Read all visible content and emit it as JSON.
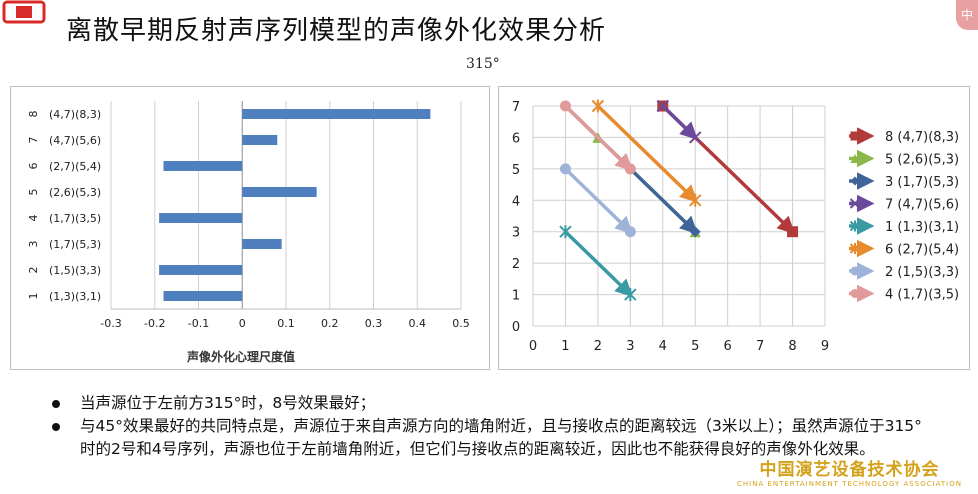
{
  "slide": {
    "title": "离散早期反射声序列模型的声像外化效果分析",
    "subtitle": "315°",
    "corner_badge": "中"
  },
  "chart_data": [
    {
      "type": "bar",
      "orientation": "horizontal",
      "categories": [
        "(1,3)(3,1)",
        "(1,5)(3,3)",
        "(1,7)(5,3)",
        "(1,7)(3,5)",
        "(2,6)(5,3)",
        "(2,7)(5,4)",
        "(4,7)(5,6)",
        "(4,7)(8,3)"
      ],
      "category_index_labels": [
        "1",
        "2",
        "3",
        "4",
        "5",
        "6",
        "7",
        "8"
      ],
      "values": [
        -0.18,
        -0.19,
        0.09,
        -0.19,
        0.17,
        -0.18,
        0.08,
        0.43
      ],
      "xlabel": "声像外化心理尺度值",
      "xlim": [
        -0.3,
        0.5
      ],
      "xticks": [
        "-0.3",
        "-0.2",
        "-0.1",
        "0",
        "0.1",
        "0.2",
        "0.3",
        "0.4",
        "0.5"
      ],
      "bar_color": "#4f7fbf",
      "grid": "vertical"
    },
    {
      "type": "line",
      "xlim": [
        0,
        9
      ],
      "ylim": [
        0,
        7
      ],
      "xticks": [
        "0",
        "1",
        "2",
        "3",
        "4",
        "5",
        "6",
        "7",
        "8",
        "9"
      ],
      "yticks": [
        "0",
        "1",
        "2",
        "3",
        "4",
        "5",
        "6",
        "7"
      ],
      "grid": true,
      "legend_position": "right",
      "series": [
        {
          "name": "8 (4,7)(8,3)",
          "color": "#b33a3a",
          "marker": "square",
          "points": [
            [
              4,
              7
            ],
            [
              8,
              3
            ]
          ]
        },
        {
          "name": "5 (2,6)(5,3)",
          "color": "#8cb84a",
          "marker": "triangle",
          "points": [
            [
              2,
              6
            ],
            [
              5,
              3
            ]
          ]
        },
        {
          "name": "3 (1,7)(5,3)",
          "color": "#3f6499",
          "marker": "diamond",
          "points": [
            [
              1,
              7
            ],
            [
              5,
              3
            ]
          ]
        },
        {
          "name": "7 (4,7)(5,6)",
          "color": "#6a4a9b",
          "marker": "x",
          "points": [
            [
              4,
              7
            ],
            [
              5,
              6
            ]
          ]
        },
        {
          "name": "1 (1,3)(3,1)",
          "color": "#3a9aa4",
          "marker": "star",
          "points": [
            [
              1,
              3
            ],
            [
              3,
              1
            ]
          ]
        },
        {
          "name": "6 (2,7)(5,4)",
          "color": "#e88a2e",
          "marker": "star",
          "points": [
            [
              2,
              7
            ],
            [
              5,
              4
            ]
          ]
        },
        {
          "name": "2 (1,5)(3,3)",
          "color": "#9fb3d8",
          "marker": "circle",
          "points": [
            [
              1,
              5
            ],
            [
              3,
              3
            ]
          ]
        },
        {
          "name": "4 (1,7)(3,5)",
          "color": "#e19a9a",
          "marker": "circle",
          "points": [
            [
              1,
              7
            ],
            [
              3,
              5
            ]
          ]
        }
      ]
    }
  ],
  "bullets": [
    "当声源位于左前方315°时，8号效果最好；",
    "与45°效果最好的共同特点是，声源位于来自声源方向的墙角附近，且与接收点的距离较远（3米以上）；虽然声源位于315°时的2号和4号序列，声源也位于左前墙角附近，但它们与接收点的距离较近，因此也不能获得良好的声像外化效果。"
  ],
  "watermark": {
    "cn": "中国演艺设备技术协会",
    "en": "CHINA ENTERTAINMENT TECHNOLOGY ASSOCIATION"
  },
  "colors": {
    "logo": "#d92b2b",
    "watermark": "#d4a21a"
  }
}
